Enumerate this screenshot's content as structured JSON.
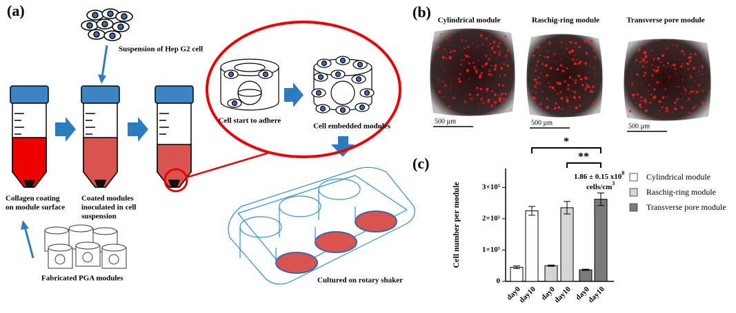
{
  "panel_a": {
    "label": "(a)",
    "suspension": "Suspension of Hep G2 cell",
    "adhere": "Cell start to adhere",
    "embedded": "Cell embedded modules",
    "collagen": {
      "lines": [
        "Collagen coating",
        "on module surface"
      ]
    },
    "coated": {
      "lines": [
        "Coated modules",
        "inoculated in cell",
        "suspension"
      ]
    },
    "fabricated": "Fabricated PGA modules",
    "cultured": "Cultured on rotary shaker"
  },
  "panel_b": {
    "label": "(b)",
    "images": [
      {
        "title": "Cylindrical module",
        "scale": "500 µm"
      },
      {
        "title": "Raschig-ring module",
        "scale": "500 µm"
      },
      {
        "title": "Transverse pore module",
        "scale": "500 µm"
      }
    ]
  },
  "panel_c": {
    "label": "(c)",
    "y_label": "Cell number per module",
    "ylim": [
      0,
      360000
    ],
    "yticks": [
      0,
      {
        "value": 100000,
        "label": "1×10⁵"
      },
      {
        "value": 200000,
        "label": "2×10⁵"
      },
      {
        "value": 300000,
        "label": "3×10⁵"
      }
    ],
    "categories": [
      "day0",
      "day10"
    ],
    "series": [
      {
        "name": "Cylindrical module",
        "color": "#ffffff",
        "values": [
          45000,
          225000
        ],
        "errors": [
          4000,
          14000
        ]
      },
      {
        "name": "Raschig-ring module",
        "color": "#d4d4d4",
        "values": [
          50000,
          235000
        ],
        "errors": [
          2000,
          20000
        ]
      },
      {
        "name": "Transverse pore module",
        "color": "#7a7a7a",
        "values": [
          37000,
          262000
        ],
        "errors": [
          2000,
          20000
        ]
      }
    ],
    "significance": [
      "*",
      "**"
    ],
    "annotation": {
      "line1": {
        "text": "1.86 ± 0.15 x10",
        "sup": "8"
      },
      "line2": {
        "text": "cells/cm",
        "sup": "3"
      }
    }
  }
}
